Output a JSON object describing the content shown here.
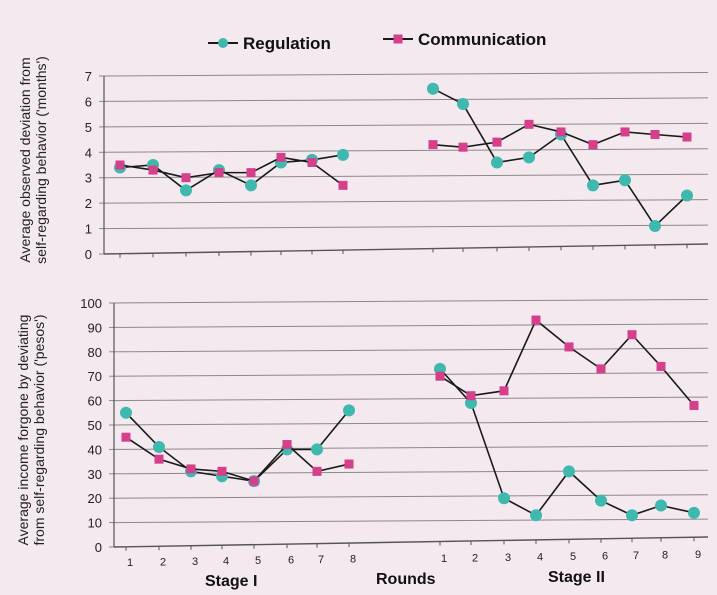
{
  "legend": {
    "regulation": "Regulation",
    "communication": "Communication"
  },
  "colors": {
    "regulation": "#3fb8ad",
    "communication": "#d63f8a",
    "line": "#1a1a1a",
    "background": "#f3e9ef",
    "grid": "#8a8a8a"
  },
  "x_labels": {
    "stage1": "Stage  I",
    "rounds": "Rounds",
    "stage2": "Stage  II"
  },
  "chart_data": [
    {
      "type": "line",
      "ylabel": [
        "Average observed deviation from",
        "self-regarding behavior ('months')"
      ],
      "ylim": [
        0,
        7
      ],
      "yticks": [
        0,
        1,
        2,
        3,
        4,
        5,
        6,
        7
      ],
      "grid": true,
      "legend_position": "top",
      "stage1_rounds": [
        1,
        2,
        3,
        4,
        5,
        6,
        7,
        8
      ],
      "stage2_rounds": [
        1,
        2,
        3,
        4,
        5,
        6,
        7,
        8,
        9
      ],
      "series": [
        {
          "name": "Regulation",
          "stage1": [
            3.4,
            3.5,
            2.5,
            3.3,
            2.7,
            3.6,
            3.7,
            3.9
          ],
          "stage2": [
            6.5,
            5.9,
            3.6,
            3.8,
            4.7,
            2.7,
            2.9,
            1.1,
            2.3
          ]
        },
        {
          "name": "Communication",
          "stage1": [
            3.5,
            3.3,
            3.0,
            3.2,
            3.2,
            3.8,
            3.6,
            2.7
          ],
          "stage2": [
            4.3,
            4.2,
            4.4,
            5.1,
            4.8,
            4.3,
            4.8,
            4.7,
            4.6
          ]
        }
      ]
    },
    {
      "type": "line",
      "ylabel": [
        "Average income forgone by deviating",
        "from self-regarding behavior ('pesos')"
      ],
      "ylim": [
        0,
        100
      ],
      "yticks": [
        0,
        10,
        20,
        30,
        40,
        50,
        60,
        70,
        80,
        90,
        100
      ],
      "xticks_stage1": [
        "1",
        "2",
        "3",
        "4",
        "5",
        "6",
        "7",
        "8"
      ],
      "xticks_stage2": [
        "1",
        "2",
        "3",
        "4",
        "5",
        "6",
        "7",
        "8",
        "9"
      ],
      "grid": true,
      "series": [
        {
          "name": "Regulation",
          "stage1": [
            55,
            41,
            31,
            29,
            27,
            40,
            40,
            56
          ],
          "stage2": [
            73,
            59,
            20,
            13,
            31,
            19,
            13,
            17,
            14
          ]
        },
        {
          "name": "Communication",
          "stage1": [
            45,
            36,
            32,
            31,
            27,
            42,
            31,
            34
          ],
          "stage2": [
            70,
            62,
            64,
            93,
            82,
            73,
            87,
            74,
            58
          ]
        }
      ]
    }
  ]
}
